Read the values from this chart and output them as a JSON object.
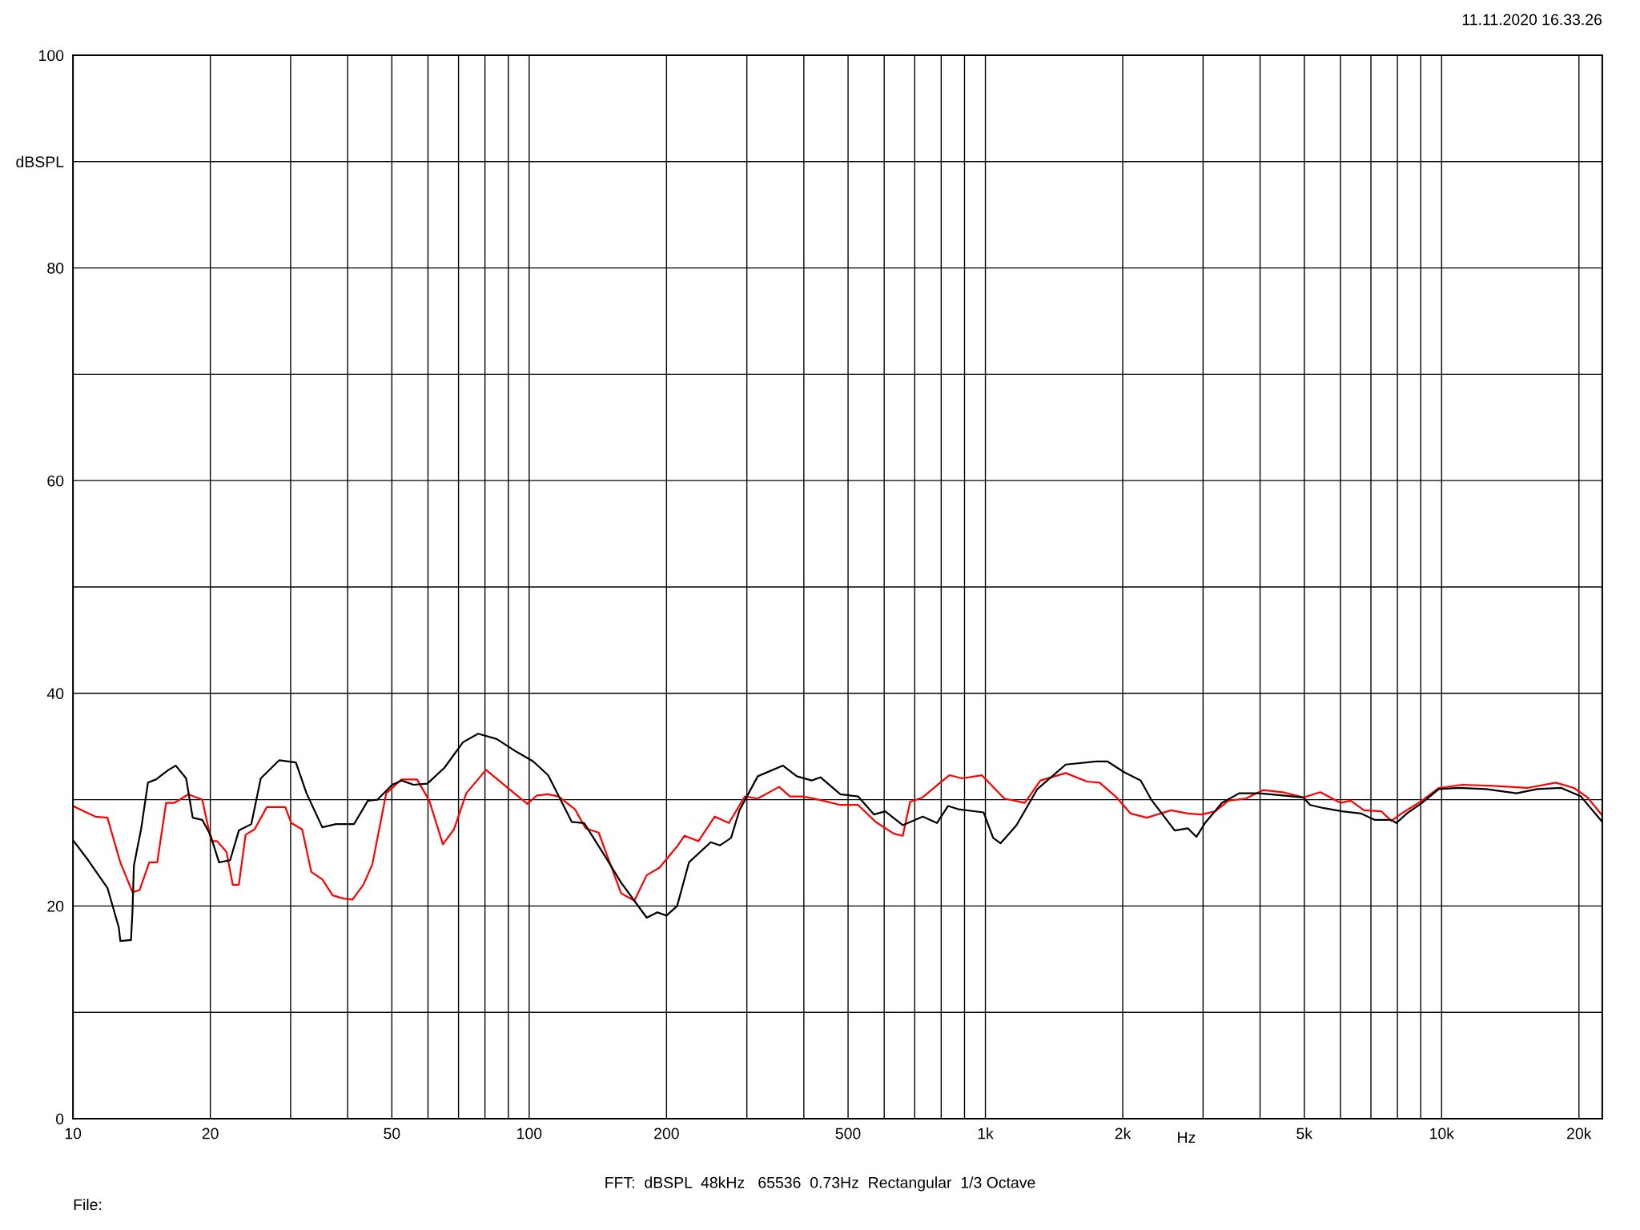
{
  "chart_data": {
    "type": "line",
    "xlabel": "Hz",
    "annotations": [
      "11.11.2020 16.33.26",
      "FFT:  dBSPL  48kHz   65536  0.73Hz  Rectangular  1/3 Octave",
      "File:"
    ],
    "log": "x",
    "grid": true,
    "legend": false,
    "marker": "none",
    "line_style": "solid",
    "xlim": [
      10,
      22500
    ],
    "xticks": [
      10,
      20,
      {
        "value": 30,
        "label": null
      },
      {
        "value": 40,
        "label": null
      },
      50,
      {
        "value": 60,
        "label": null
      },
      {
        "value": 70,
        "label": null
      },
      {
        "value": 80,
        "label": null
      },
      {
        "value": 90,
        "label": null
      },
      100,
      200,
      {
        "value": 300,
        "label": null
      },
      {
        "value": 400,
        "label": null
      },
      500,
      {
        "value": 600,
        "label": null
      },
      {
        "value": 700,
        "label": null
      },
      {
        "value": 800,
        "label": null
      },
      {
        "value": 900,
        "label": null
      },
      {
        "value": 1000,
        "label": "1k"
      },
      {
        "value": 2000,
        "label": "2k"
      },
      {
        "value": 3000,
        "label": null
      },
      {
        "value": 4000,
        "label": null
      },
      {
        "value": 5000,
        "label": "5k"
      },
      {
        "value": 6000,
        "label": null
      },
      {
        "value": 7000,
        "label": null
      },
      {
        "value": 8000,
        "label": null
      },
      {
        "value": 9000,
        "label": null
      },
      {
        "value": 10000,
        "label": "10k"
      },
      {
        "value": 20000,
        "label": "20k"
      }
    ],
    "ylim": [
      0,
      100
    ],
    "yticks": [
      0,
      {
        "value": 10,
        "label": null
      },
      20,
      {
        "value": 30,
        "label": null
      },
      40,
      {
        "value": 50,
        "label": null
      },
      60,
      {
        "value": 70,
        "label": null
      },
      80,
      {
        "value": 90,
        "label": "dBSPL"
      },
      100
    ],
    "series": [
      {
        "color": "#ff0000",
        "x": [
          10.0,
          11.2,
          11.9,
          12.7,
          13.5,
          14.0,
          14.7,
          15.3,
          16.0,
          16.7,
          17.9,
          19.2,
          20.1,
          20.7,
          21.7,
          22.4,
          23.1,
          23.9,
          25.0,
          26.6,
          29.2,
          30.1,
          31.8,
          33.3,
          35.2,
          37.1,
          39.2,
          41.0,
          43.3,
          45.3,
          48.6,
          52.5,
          56.8,
          60.4,
          64.7,
          68.4,
          72.8,
          80.4,
          90.4,
          99.1,
          104,
          110,
          116,
          126,
          133,
          142,
          159,
          170,
          181,
          193,
          211,
          219,
          235,
          255,
          274,
          297,
          317,
          353,
          373,
          397,
          431,
          481,
          526,
          575,
          630,
          659,
          684,
          728,
          791,
          834,
          889,
          982,
          1100,
          1220,
          1320,
          1500,
          1670,
          1780,
          1940,
          2080,
          2260,
          2550,
          2780,
          2980,
          3190,
          3410,
          3720,
          4060,
          4490,
          4980,
          5420,
          6000,
          6320,
          6760,
          7380,
          7760,
          8170,
          8530,
          9060,
          9860,
          11100,
          13000,
          15400,
          17800,
          19500,
          20900,
          22500
        ],
        "values": [
          29.4,
          28.4,
          28.3,
          24.1,
          21.3,
          21.5,
          24.1,
          24.1,
          29.7,
          29.7,
          30.5,
          30.0,
          26.1,
          26.1,
          25.1,
          22.0,
          22.0,
          26.7,
          27.2,
          29.3,
          29.3,
          27.8,
          27.2,
          23.2,
          22.5,
          21.0,
          20.7,
          20.6,
          22.0,
          23.9,
          30.6,
          31.9,
          31.9,
          29.9,
          25.8,
          27.2,
          30.6,
          32.8,
          31.0,
          29.6,
          30.4,
          30.5,
          30.3,
          29.1,
          27.3,
          26.9,
          21.2,
          20.5,
          22.9,
          23.6,
          25.6,
          26.6,
          26.1,
          28.4,
          27.8,
          30.3,
          30.1,
          31.2,
          30.3,
          30.3,
          30.0,
          29.5,
          29.5,
          27.9,
          26.8,
          26.6,
          29.8,
          30.2,
          31.5,
          32.3,
          32.0,
          32.3,
          30.1,
          29.7,
          31.8,
          32.5,
          31.7,
          31.6,
          30.2,
          28.7,
          28.3,
          29.0,
          28.7,
          28.6,
          28.9,
          29.9,
          30.1,
          30.9,
          30.7,
          30.2,
          30.7,
          29.7,
          29.9,
          29.0,
          28.9,
          28.0,
          28.7,
          29.2,
          29.9,
          31.1,
          31.4,
          31.3,
          31.1,
          31.6,
          31.1,
          30.2,
          28.5
        ]
      },
      {
        "color": "#000000",
        "x": [
          10.0,
          10.8,
          11.9,
          12.6,
          12.7,
          13.4,
          13.5,
          13.6,
          14.1,
          14.6,
          15.2,
          16.2,
          16.8,
          17.7,
          18.3,
          19.2,
          20.0,
          20.9,
          22.1,
          23.1,
          24.6,
          25.8,
          28.3,
          30.8,
          32.5,
          35.2,
          37.7,
          41.3,
          44.3,
          46.5,
          50.1,
          52.5,
          55.8,
          59.8,
          65.2,
          71.6,
          77.3,
          84.9,
          93.8,
          102,
          110,
          114,
          124,
          132,
          148,
          159,
          170,
          181,
          191,
          200,
          211,
          224,
          250,
          262,
          277,
          289,
          317,
          360,
          386,
          416,
          435,
          481,
          526,
          570,
          603,
          659,
          729,
          783,
          828,
          873,
          991,
          1040,
          1080,
          1170,
          1300,
          1500,
          1750,
          1850,
          2010,
          2190,
          2310,
          2600,
          2780,
          2900,
          3030,
          3300,
          3600,
          3980,
          4490,
          4980,
          5150,
          5520,
          6050,
          6650,
          7130,
          7760,
          7960,
          8390,
          9060,
          9860,
          10900,
          12500,
          14600,
          16200,
          18300,
          20200,
          22000,
          22500
        ],
        "values": [
          26.2,
          24.3,
          21.7,
          18.0,
          16.7,
          16.8,
          19.4,
          23.8,
          27.2,
          31.6,
          31.9,
          32.8,
          33.2,
          32.0,
          28.3,
          28.1,
          26.7,
          24.1,
          24.3,
          27.1,
          27.7,
          32.0,
          33.7,
          33.5,
          30.6,
          27.4,
          27.7,
          27.7,
          29.9,
          30.0,
          31.4,
          31.8,
          31.4,
          31.5,
          33.0,
          35.4,
          36.2,
          35.7,
          34.5,
          33.6,
          32.3,
          31.0,
          27.9,
          27.8,
          24.4,
          22.2,
          20.5,
          18.9,
          19.4,
          19.1,
          20.0,
          24.1,
          26.0,
          25.7,
          26.4,
          29.0,
          32.2,
          33.2,
          32.2,
          31.8,
          32.1,
          30.5,
          30.3,
          28.6,
          28.9,
          27.6,
          28.4,
          27.8,
          29.4,
          29.1,
          28.8,
          26.4,
          25.9,
          27.6,
          31.0,
          33.3,
          33.6,
          33.6,
          32.6,
          31.8,
          30.0,
          27.1,
          27.3,
          26.5,
          27.8,
          29.7,
          30.6,
          30.6,
          30.4,
          30.2,
          29.5,
          29.2,
          28.9,
          28.7,
          28.1,
          28.1,
          27.8,
          28.7,
          29.7,
          31.0,
          31.1,
          31.0,
          30.6,
          31.0,
          31.1,
          30.3,
          28.4,
          27.9
        ]
      }
    ]
  }
}
